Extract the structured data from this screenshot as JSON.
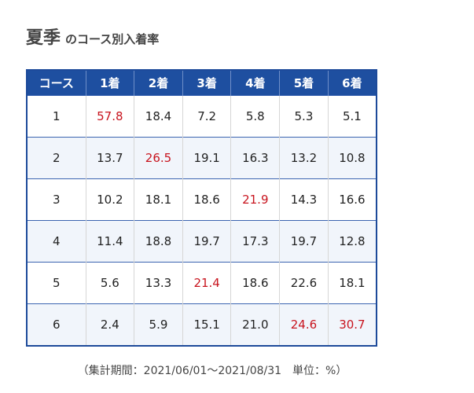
{
  "title": {
    "main": "夏季",
    "sub": "のコース別入着率"
  },
  "table": {
    "header": [
      "コース",
      "1着",
      "2着",
      "3着",
      "4着",
      "5着",
      "6着"
    ],
    "rows": [
      [
        "1",
        "57.8",
        "18.4",
        "7.2",
        "5.8",
        "5.3",
        "5.1"
      ],
      [
        "2",
        "13.7",
        "26.5",
        "19.1",
        "16.3",
        "13.2",
        "10.8"
      ],
      [
        "3",
        "10.2",
        "18.1",
        "18.6",
        "21.9",
        "14.3",
        "16.6"
      ],
      [
        "4",
        "11.4",
        "18.8",
        "19.7",
        "17.3",
        "19.7",
        "12.8"
      ],
      [
        "5",
        "5.6",
        "13.3",
        "21.4",
        "18.6",
        "22.6",
        "18.1"
      ],
      [
        "6",
        "2.4",
        "5.9",
        "15.1",
        "21.0",
        "24.6",
        "30.7"
      ]
    ],
    "highlighted": [
      [
        0,
        1
      ],
      [
        1,
        2
      ],
      [
        2,
        4
      ],
      [
        4,
        3
      ],
      [
        5,
        5
      ],
      [
        5,
        6
      ]
    ],
    "highlight_color": "#c8141e"
  },
  "footnote": "（集計期間：2021/06/01〜2021/08/31　単位：%）"
}
